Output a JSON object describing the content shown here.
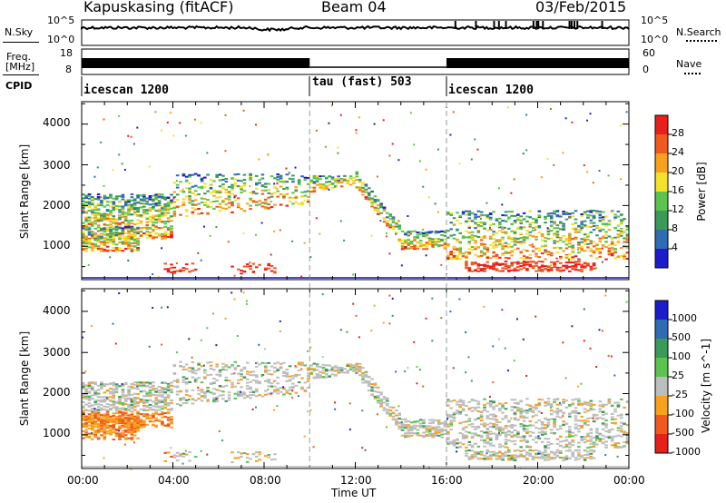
{
  "header": {
    "station": "Kapuskasing (fitACF)",
    "beam": "Beam 04",
    "date": "03/Feb/2015"
  },
  "nsky_panel": {
    "label": "N.Sky",
    "left_ticks": [
      "10^5",
      "10^0"
    ],
    "right_ticks": [
      "10^5",
      "10^0"
    ],
    "right_label": "N.Search"
  },
  "freq_panel": {
    "label_line1": "Freq.",
    "label_line2": "[MHz]",
    "left_ticks": [
      "18",
      "8"
    ],
    "right_ticks": [
      "60",
      "0"
    ],
    "right_label": "Nave"
  },
  "cpid_panel": {
    "label": "CPID",
    "segments": [
      {
        "name": "icescan 1200",
        "start_h": 0,
        "end_h": 10
      },
      {
        "name": "tau (fast) 503",
        "start_h": 10,
        "end_h": 16
      },
      {
        "name": "icescan 1200",
        "start_h": 16,
        "end_h": 24
      }
    ]
  },
  "axes": {
    "x_ticks": [
      "00:00",
      "04:00",
      "08:00",
      "12:00",
      "16:00",
      "20:00",
      "00:00"
    ],
    "xlabel": "Time UT",
    "ylabel": "Slant Range [km]",
    "y_ticks": [
      "1000",
      "2000",
      "3000",
      "4000"
    ]
  },
  "chart_data": [
    {
      "type": "heatmap",
      "quantity": "Power",
      "x_range_hours": [
        0,
        24
      ],
      "y_range_km": [
        180,
        4550
      ],
      "colorbar": {
        "label": "Power [dB]",
        "ticks": [
          "28",
          "24",
          "20",
          "16",
          "12",
          "8",
          "4"
        ],
        "colors": [
          "#e8201c",
          "#f05a1e",
          "#f7a21c",
          "#f4e22a",
          "#5cc44e",
          "#3a9a5a",
          "#2e6cb4",
          "#1c1ccc"
        ]
      }
    },
    {
      "type": "heatmap",
      "quantity": "Velocity",
      "x_range_hours": [
        0,
        24
      ],
      "y_range_km": [
        180,
        4550
      ],
      "colorbar": {
        "label": "Velocity [m s^-1]",
        "ticks": [
          "1000",
          "500",
          "100",
          "25",
          "-25",
          "-100",
          "-500",
          "-1000"
        ],
        "colors": [
          "#1c1ccc",
          "#2e6cb4",
          "#3a9a5a",
          "#5cc44e",
          "#bdbdbd",
          "#f7a21c",
          "#f05a1e",
          "#e8201c"
        ]
      }
    }
  ]
}
